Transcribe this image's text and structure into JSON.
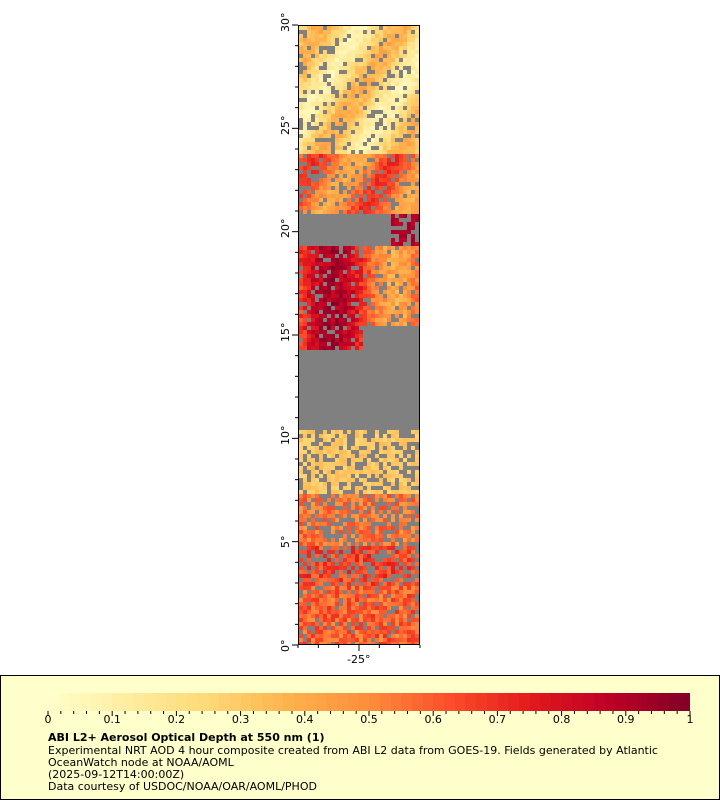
{
  "map": {
    "lat_ticks": [
      "0°",
      "5°",
      "10°",
      "15°",
      "20°",
      "25°",
      "30°"
    ],
    "lon_ticks": [
      "-25°"
    ],
    "lat_range": [
      0,
      30
    ],
    "lon_range": [
      -28,
      -22
    ],
    "land_color": "#808080",
    "nodata_color": "#c8c8c8"
  },
  "legend": {
    "colorbar_labels": [
      "0",
      "0.1",
      "0.2",
      "0.3",
      "0.4",
      "0.5",
      "0.6",
      "0.7",
      "0.8",
      "0.9",
      "1"
    ],
    "colorbar_range": [
      0,
      1
    ],
    "colorbar_colors": [
      "#ffffcc",
      "#ffeda0",
      "#fed976",
      "#feb24c",
      "#fd8d3c",
      "#fc4e2a",
      "#e31a1c",
      "#bd0026",
      "#800026"
    ],
    "title": "ABI L2+ Aerosol Optical Depth at 550 nm (1)",
    "line1": "Experimental NRT AOD 4 hour composite created from ABI L2 data from GOES-19. Fields generated by Atlantic",
    "line2": "OceanWatch node at NOAA/AOML",
    "line3": "(2025-09-12T14:00:00Z)",
    "line4": "Data courtesy of USDOC/NOAA/OAR/AOML/PHOD",
    "background": "#ffffcc"
  }
}
